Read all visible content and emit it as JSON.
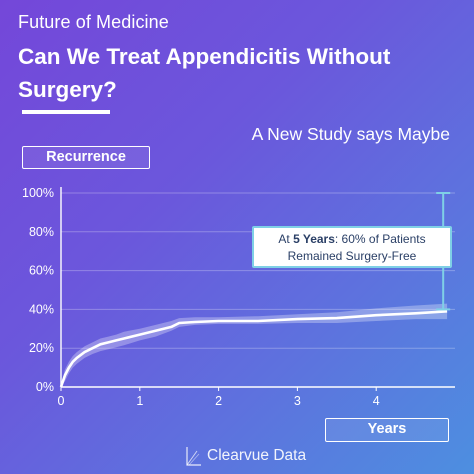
{
  "header": {
    "series": "Future of Medicine",
    "headline": "Can We Treat Appendicitis Without Surgery?",
    "subtitle": "A New Study says Maybe"
  },
  "brand": {
    "name": "Clearvue Data",
    "logo_icon": "clearvue-logo-icon"
  },
  "callout": {
    "prefix": "At",
    "emphasis": "5 Years",
    "rest_line1": ": 60% of Patients",
    "line2": "Remained Surgery-Free"
  },
  "colors": {
    "background_start": "#7447d9",
    "background_end": "#4d8fe0",
    "line": "#ffffff",
    "band": "#ffffff",
    "callout_border": "#7fd0e6",
    "callout_text": "#2a3f66"
  },
  "chart_data": {
    "type": "line",
    "xlabel": "Years",
    "ylabel": "Recurrence",
    "xlim": [
      0,
      5
    ],
    "ylim": [
      0,
      100
    ],
    "x_ticks": [
      "0",
      "1",
      "2",
      "3",
      "4"
    ],
    "y_ticks": [
      "0%",
      "20%",
      "40%",
      "60%",
      "80%",
      "100%"
    ],
    "grid": true,
    "series": [
      {
        "x": [
          0,
          0.05,
          0.1,
          0.15,
          0.2,
          0.3,
          0.4,
          0.5,
          0.6,
          0.7,
          0.8,
          1.0,
          1.2,
          1.4,
          1.5,
          1.7,
          2.0,
          2.5,
          3.0,
          3.5,
          4.0,
          4.5,
          4.9
        ],
        "values": [
          0,
          6,
          10,
          13,
          15,
          18,
          20,
          22,
          23,
          24,
          25,
          27,
          29,
          31,
          33,
          33.5,
          34,
          34,
          35,
          35.5,
          37,
          38,
          39
        ],
        "lower": [
          0,
          3,
          7,
          10,
          12,
          15,
          17,
          18.5,
          19.5,
          20.5,
          21.5,
          24,
          26,
          29,
          31,
          32,
          32.5,
          32.5,
          33,
          33,
          34,
          35,
          35
        ],
        "upper": [
          0,
          9,
          13,
          16,
          18,
          21,
          23,
          25,
          26,
          27,
          28.5,
          30,
          32,
          34,
          35.5,
          36,
          36,
          36.5,
          37.5,
          38.5,
          40.5,
          42,
          43
        ]
      }
    ],
    "annotation": {
      "x": 4.85,
      "from": 40,
      "to": 100
    }
  }
}
